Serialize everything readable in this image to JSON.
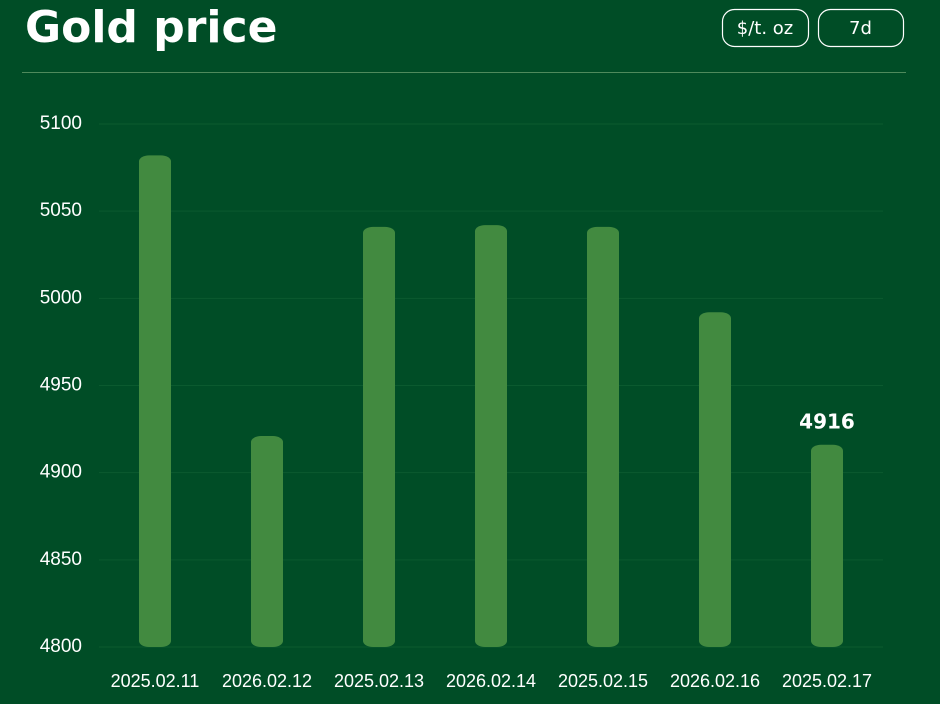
{
  "chart_data": {
    "type": "bar",
    "title": "Gold price",
    "controls": [
      "$/t. oz",
      "7d"
    ],
    "categories": [
      "2025.02.11",
      "2026.02.12",
      "2025.02.13",
      "2026.02.14",
      "2025.02.15",
      "2026.02.16",
      "2025.02.17"
    ],
    "values": [
      5082,
      4921,
      5041,
      5042,
      5041,
      4992,
      4916
    ],
    "value_labels": [
      null,
      null,
      null,
      null,
      null,
      null,
      "4916"
    ],
    "color": "#428a40",
    "ylim": [
      4800,
      5100
    ],
    "yticks": [
      4800,
      4850,
      4900,
      4950,
      5000,
      5050,
      5100
    ],
    "grid": true
  }
}
